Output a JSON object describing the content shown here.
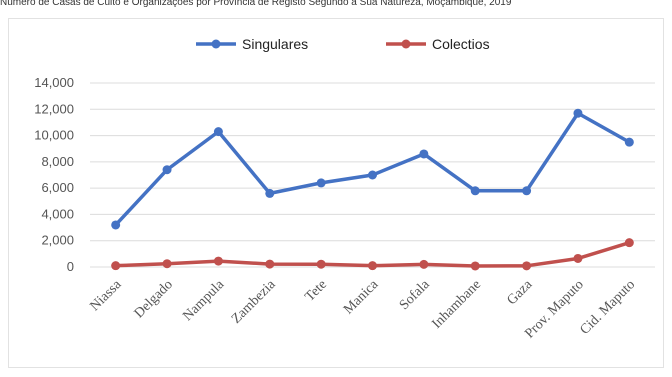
{
  "header_text": "Número de Casas de Culto e Organizações por Província de Registo Segundo a Sua Natureza, Moçambique, 2019",
  "chart_data": {
    "type": "line",
    "title": "",
    "xlabel": "",
    "ylabel": "",
    "ylim": [
      0,
      14000
    ],
    "yticks": [
      0,
      2000,
      4000,
      6000,
      8000,
      10000,
      12000,
      14000
    ],
    "ytick_labels": [
      "0",
      "2,000",
      "4,000",
      "6,000",
      "8,000",
      "10,000",
      "12,000",
      "14,000"
    ],
    "grid": true,
    "legend_position": "top",
    "categories": [
      "Niassa",
      "Delgado",
      "Nampula",
      "Zambezia",
      "Tete",
      "Manica",
      "Sofala",
      "Inhambane",
      "Gaza",
      "Prov. Maputo",
      "Cid. Maputo"
    ],
    "series": [
      {
        "name": "Singulares",
        "color": "#4472c4",
        "values": [
          3200,
          7400,
          10300,
          5600,
          6400,
          7000,
          8600,
          5800,
          5800,
          11700,
          9500
        ]
      },
      {
        "name": "Colectios",
        "color": "#c0504d",
        "values": [
          100,
          250,
          450,
          220,
          210,
          100,
          200,
          80,
          90,
          650,
          1850
        ]
      }
    ]
  }
}
